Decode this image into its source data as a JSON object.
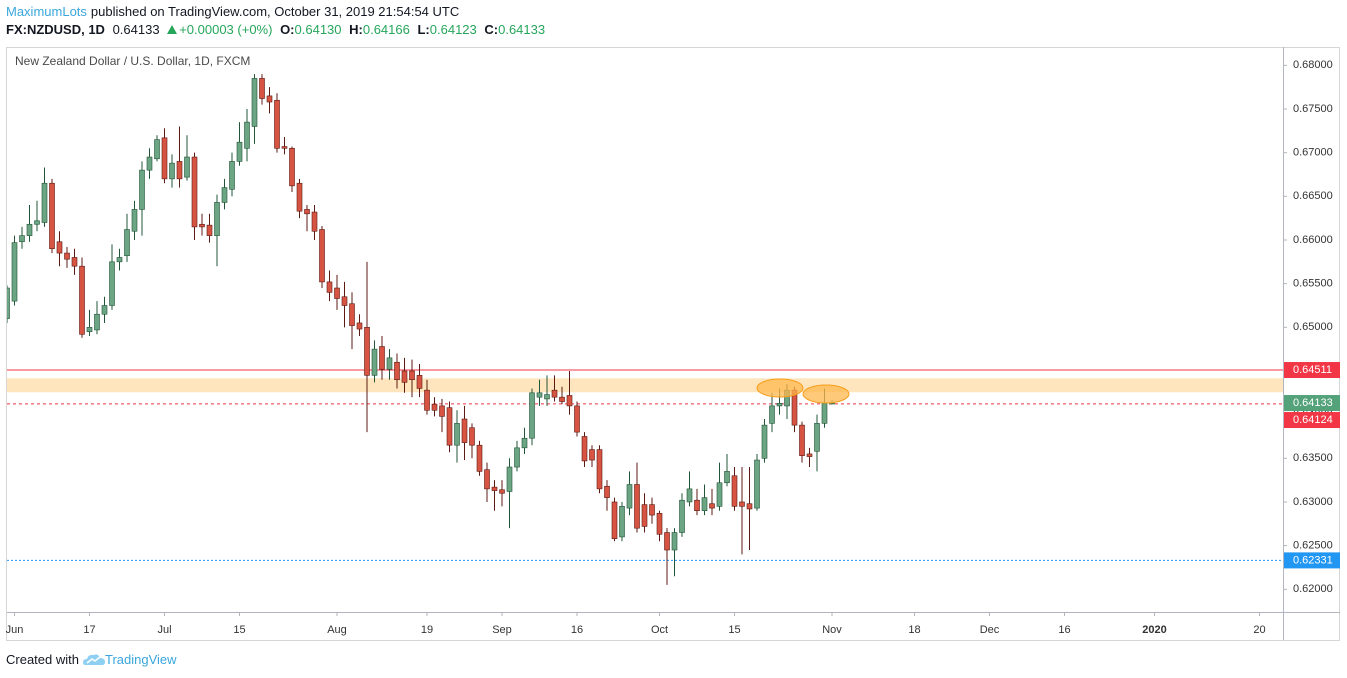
{
  "header": {
    "user": "MaximumLots",
    "published": "published on TradingView.com, October 31, 2019 21:54:54 UTC",
    "symbol": "FX:NZDUSD, 1D",
    "price": "0.64133",
    "change": "+0.00003 (+0%)",
    "o_label": "O:",
    "o_value": "0.64130",
    "h_label": "H:",
    "h_value": "0.64166",
    "l_label": "L:",
    "l_value": "0.64123",
    "c_label": "C:",
    "c_value": "0.64133"
  },
  "footer": {
    "text": "Created with",
    "brand": "TradingView"
  },
  "chart_data": {
    "type": "candlestick",
    "title": "New Zealand Dollar / U.S. Dollar, 1D, FXCM",
    "categories": [
      null,
      "Jun",
      null,
      null,
      null,
      null,
      null,
      null,
      null,
      null,
      null,
      "17",
      null,
      null,
      null,
      null,
      null,
      null,
      null,
      null,
      null,
      "Jul",
      null,
      null,
      null,
      null,
      null,
      null,
      null,
      null,
      null,
      "15",
      null,
      null,
      null,
      null,
      null,
      null,
      null,
      null,
      null,
      null,
      null,
      null,
      "Aug",
      null,
      null,
      null,
      null,
      null,
      null,
      null,
      null,
      null,
      null,
      null,
      "19",
      null,
      null,
      null,
      null,
      null,
      null,
      null,
      null,
      null,
      "Sep",
      null,
      null,
      null,
      null,
      null,
      null,
      null,
      null,
      null,
      "16",
      null,
      null,
      null,
      null,
      null,
      null,
      null,
      null,
      null,
      null,
      "Oct",
      null,
      null,
      null,
      null,
      null,
      null,
      null,
      null,
      null,
      "15",
      null,
      null,
      null,
      null,
      null,
      null,
      null,
      null,
      null,
      null,
      null,
      null,
      "Nov",
      null,
      null,
      null,
      null,
      null,
      null,
      null,
      null,
      null,
      null,
      "18",
      null,
      null,
      null,
      null,
      null,
      null,
      null,
      null,
      null,
      "Dec",
      null,
      null,
      null,
      null,
      null,
      null,
      null,
      null,
      null,
      "16",
      null,
      null,
      null,
      null,
      null,
      null,
      null,
      null,
      null,
      null,
      null,
      "2020",
      null,
      null,
      null,
      null,
      null,
      null,
      null,
      null,
      null,
      null,
      null,
      null,
      null,
      "20",
      null,
      null,
      null
    ],
    "open": [
      0.651,
      0.653,
      0.6598,
      0.6605,
      0.6618,
      0.662,
      0.6665,
      0.6598,
      0.6585,
      0.658,
      0.657,
      0.6495,
      0.6497,
      0.6515,
      0.6525,
      0.6575,
      0.6582,
      0.661,
      0.6635,
      0.668,
      0.6693,
      0.6717,
      0.667,
      0.669,
      0.6672,
      0.6695,
      0.6618,
      0.6617,
      0.6605,
      0.6643,
      0.6658,
      0.669,
      0.6705,
      0.673,
      0.6785,
      0.6765,
      0.676,
      0.6707,
      0.6705,
      0.6665,
      0.6635,
      0.6632,
      0.6612,
      0.6552,
      0.6545,
      0.6535,
      0.6527,
      0.6505,
      0.65,
      0.6445,
      0.6478,
      0.6452,
      0.646,
      0.645,
      0.645,
      0.6445,
      0.6428,
      0.6412,
      0.641,
      0.6408,
      0.6365,
      0.6395,
      0.6385,
      0.6365,
      0.6337,
      0.6317,
      0.6314,
      0.6312,
      0.634,
      0.6362,
      0.6373,
      0.642,
      0.6418,
      0.6428,
      0.642,
      0.6422,
      0.641,
      0.6375,
      0.636,
      0.636,
      0.6318,
      0.63,
      0.626,
      0.6293,
      0.632,
      0.6297,
      0.6297,
      0.6287,
      0.6265,
      0.6245,
      0.6265,
      0.63,
      0.6302,
      0.629,
      0.6298,
      0.6295,
      0.6322,
      0.633,
      0.63,
      0.6298,
      0.6293,
      0.635,
      0.639,
      0.641,
      0.641,
      0.6428,
      0.6388,
      0.6355,
      0.6358,
      0.639,
      0.6413,
      null,
      null,
      null,
      null,
      null,
      null,
      null,
      null,
      null,
      null,
      null,
      null,
      null,
      null,
      null,
      null,
      null,
      null,
      null,
      null,
      null,
      null,
      null,
      null,
      null,
      null,
      null,
      null,
      null,
      null,
      null,
      null,
      null,
      null,
      null,
      null,
      null,
      null,
      null,
      null,
      null,
      null,
      null,
      null,
      null,
      null,
      null,
      null,
      null,
      null,
      null,
      null,
      null,
      null,
      null,
      null,
      null,
      null,
      null,
      null
    ],
    "high": [
      0.6548,
      0.6605,
      0.6615,
      0.664,
      0.6645,
      0.6683,
      0.667,
      0.661,
      0.6592,
      0.659,
      0.658,
      0.652,
      0.653,
      0.6535,
      0.6595,
      0.659,
      0.663,
      0.6645,
      0.669,
      0.6705,
      0.672,
      0.6728,
      0.6698,
      0.673,
      0.672,
      0.67,
      0.663,
      0.663,
      0.6652,
      0.667,
      0.67,
      0.6735,
      0.675,
      0.679,
      0.679,
      0.6775,
      0.6768,
      0.6718,
      0.6707,
      0.667,
      0.664,
      0.664,
      0.6616,
      0.6565,
      0.656,
      0.6552,
      0.654,
      0.6515,
      0.6575,
      0.6485,
      0.649,
      0.6475,
      0.647,
      0.6465,
      0.6463,
      0.6458,
      0.644,
      0.642,
      0.6418,
      0.6415,
      0.6405,
      0.641,
      0.639,
      0.637,
      0.6345,
      0.6325,
      0.6325,
      0.635,
      0.637,
      0.6385,
      0.643,
      0.644,
      0.6445,
      0.6445,
      0.6432,
      0.645,
      0.6415,
      0.638,
      0.6365,
      0.6365,
      0.6325,
      0.6305,
      0.63,
      0.6335,
      0.6345,
      0.631,
      0.6305,
      0.629,
      0.627,
      0.627,
      0.631,
      0.6335,
      0.6315,
      0.632,
      0.6315,
      0.6345,
      0.6355,
      0.634,
      0.634,
      0.634,
      0.6355,
      0.6395,
      0.6425,
      0.643,
      0.6435,
      0.6432,
      0.6392,
      0.6362,
      0.64,
      0.643,
      0.64166,
      null,
      null,
      null,
      null,
      null,
      null,
      null,
      null,
      null,
      null,
      null,
      null,
      null,
      null,
      null,
      null,
      null,
      null,
      null,
      null,
      null,
      null,
      null,
      null,
      null,
      null,
      null,
      null,
      null,
      null,
      null,
      null,
      null,
      null,
      null,
      null,
      null,
      null,
      null,
      null,
      null,
      null,
      null,
      null,
      null,
      null,
      null,
      null,
      null,
      null,
      null,
      null,
      null,
      null,
      null,
      null,
      null,
      null,
      null,
      null
    ],
    "low": [
      0.6505,
      0.6525,
      0.659,
      0.6598,
      0.661,
      0.6615,
      0.6585,
      0.657,
      0.6568,
      0.656,
      0.6488,
      0.649,
      0.6492,
      0.6505,
      0.652,
      0.6565,
      0.6575,
      0.66,
      0.6605,
      0.667,
      0.669,
      0.6665,
      0.666,
      0.666,
      0.6668,
      0.66,
      0.6605,
      0.6597,
      0.657,
      0.6635,
      0.665,
      0.6685,
      0.669,
      0.671,
      0.6755,
      0.6745,
      0.67,
      0.6698,
      0.6655,
      0.6625,
      0.661,
      0.66,
      0.6545,
      0.653,
      0.652,
      0.65,
      0.6475,
      0.649,
      0.638,
      0.6437,
      0.644,
      0.644,
      0.643,
      0.6425,
      0.642,
      0.642,
      0.64,
      0.6398,
      0.638,
      0.6357,
      0.6345,
      0.6348,
      0.635,
      0.633,
      0.63,
      0.629,
      0.6295,
      0.627,
      0.6335,
      0.6355,
      0.6365,
      0.641,
      0.641,
      0.6415,
      0.6412,
      0.64,
      0.6375,
      0.634,
      0.634,
      0.631,
      0.629,
      0.6255,
      0.6255,
      0.6285,
      0.6265,
      0.6265,
      0.6275,
      0.6255,
      0.6205,
      0.6215,
      0.626,
      0.6295,
      0.6285,
      0.6285,
      0.6285,
      0.629,
      0.6318,
      0.629,
      0.624,
      0.6245,
      0.629,
      0.6345,
      0.638,
      0.64,
      0.6395,
      0.638,
      0.6345,
      0.634,
      0.6335,
      0.6385,
      0.64123,
      null,
      null,
      null,
      null,
      null,
      null,
      null,
      null,
      null,
      null,
      null,
      null,
      null,
      null,
      null,
      null,
      null,
      null,
      null,
      null,
      null,
      null,
      null,
      null,
      null,
      null,
      null,
      null,
      null,
      null,
      null,
      null,
      null,
      null,
      null,
      null,
      null,
      null,
      null,
      null,
      null,
      null,
      null,
      null,
      null,
      null,
      null,
      null,
      null,
      null,
      null,
      null,
      null,
      null,
      null,
      null,
      null,
      null,
      null,
      null
    ],
    "close": [
      0.6545,
      0.6597,
      0.6605,
      0.6618,
      0.6622,
      0.6665,
      0.659,
      0.6585,
      0.6578,
      0.657,
      0.6492,
      0.65,
      0.6515,
      0.6525,
      0.6575,
      0.658,
      0.6612,
      0.6635,
      0.668,
      0.6695,
      0.6715,
      0.667,
      0.6688,
      0.667,
      0.6695,
      0.6615,
      0.6615,
      0.6605,
      0.6643,
      0.666,
      0.669,
      0.6712,
      0.6735,
      0.6785,
      0.6762,
      0.6758,
      0.6705,
      0.6705,
      0.6662,
      0.6633,
      0.663,
      0.661,
      0.6552,
      0.654,
      0.6533,
      0.6525,
      0.6502,
      0.6498,
      0.6445,
      0.6475,
      0.6452,
      0.6465,
      0.644,
      0.6437,
      0.644,
      0.643,
      0.6405,
      0.6405,
      0.6398,
      0.6365,
      0.639,
      0.6368,
      0.6365,
      0.6335,
      0.6315,
      0.6313,
      0.631,
      0.634,
      0.6362,
      0.6373,
      0.6425,
      0.6425,
      0.6423,
      0.642,
      0.6415,
      0.641,
      0.638,
      0.6347,
      0.6348,
      0.6315,
      0.6305,
      0.6258,
      0.6295,
      0.632,
      0.627,
      0.6272,
      0.6285,
      0.6263,
      0.6245,
      0.6265,
      0.6302,
      0.6315,
      0.629,
      0.6305,
      0.6293,
      0.6322,
      0.6335,
      0.6295,
      0.6295,
      0.6292,
      0.6348,
      0.6388,
      0.641,
      0.6413,
      0.6428,
      0.6388,
      0.6353,
      0.6352,
      0.639,
      0.6413,
      0.64133,
      null,
      null,
      null,
      null,
      null,
      null,
      null,
      null,
      null,
      null,
      null,
      null,
      null,
      null,
      null,
      null,
      null,
      null,
      null,
      null,
      null,
      null,
      null,
      null,
      null,
      null,
      null,
      null,
      null,
      null,
      null,
      null,
      null,
      null,
      null,
      null,
      null,
      null,
      null,
      null,
      null,
      null,
      null,
      null,
      null,
      null,
      null,
      null,
      null,
      null,
      null,
      null,
      null,
      null,
      null,
      null,
      null,
      null,
      null,
      null
    ],
    "up_color": "#6ba583",
    "up_border": "#225437",
    "down_color": "#d75442",
    "down_border": "#5b1a13",
    "ylim": [
      0.6174,
      0.6821
    ],
    "yticks": [
      {
        "value": 0.62,
        "label": "0.62000"
      },
      {
        "value": 0.625,
        "label": "0.62500"
      },
      {
        "value": 0.63,
        "label": "0.63000"
      },
      {
        "value": 0.635,
        "label": "0.63500"
      },
      {
        "value": 0.64,
        "label": "0.64000"
      },
      {
        "value": 0.645,
        "label": "0.64500"
      },
      {
        "value": 0.65,
        "label": "0.65000"
      },
      {
        "value": 0.655,
        "label": "0.65500"
      },
      {
        "value": 0.66,
        "label": "0.66000"
      },
      {
        "value": 0.665,
        "label": "0.66500"
      },
      {
        "value": 0.67,
        "label": "0.67000"
      },
      {
        "value": 0.675,
        "label": "0.67500"
      },
      {
        "value": 0.68,
        "label": "0.68000"
      }
    ],
    "grid": false,
    "levels": [
      {
        "value": 0.64511,
        "color": "#f23645",
        "style": "solid"
      },
      {
        "value": 0.64124,
        "color": "#f23645",
        "style": "dashed"
      },
      {
        "value": 0.62331,
        "color": "#2196f3",
        "style": "dotted"
      }
    ],
    "last_price_color": "#53a27a",
    "zone": {
      "range": [
        0.64256,
        0.64416
      ],
      "color": "#ffe5bd"
    }
  }
}
